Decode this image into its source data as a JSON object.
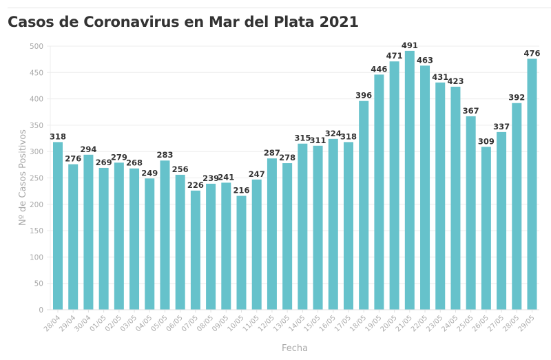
{
  "chart_data": {
    "type": "bar",
    "title": "Casos de Coronavirus en Mar del Plata 2021",
    "xlabel": "Fecha",
    "ylabel": "Nº de Casos Positivos",
    "ylim": [
      0,
      500
    ],
    "yticks": [
      0,
      50,
      100,
      150,
      200,
      250,
      300,
      350,
      400,
      450,
      500
    ],
    "grid": true,
    "bar_color": "#66c2cb",
    "categories": [
      "28/04",
      "29/04",
      "30/04",
      "01/05",
      "02/05",
      "03/05",
      "04/05",
      "05/05",
      "06/05",
      "07/05",
      "08/05",
      "09/05",
      "10/05",
      "11/05",
      "12/05",
      "13/05",
      "14/05",
      "15/05",
      "16/05",
      "17/05",
      "18/05",
      "19/05",
      "20/05",
      "21/05",
      "22/05",
      "23/05",
      "24/05",
      "25/05",
      "26/05",
      "27/05",
      "28/05",
      "29/05"
    ],
    "values": [
      318,
      276,
      294,
      269,
      279,
      268,
      249,
      283,
      256,
      226,
      239,
      241,
      216,
      247,
      287,
      278,
      315,
      311,
      324,
      318,
      396,
      446,
      471,
      491,
      463,
      431,
      423,
      367,
      309,
      337,
      392,
      476
    ]
  }
}
